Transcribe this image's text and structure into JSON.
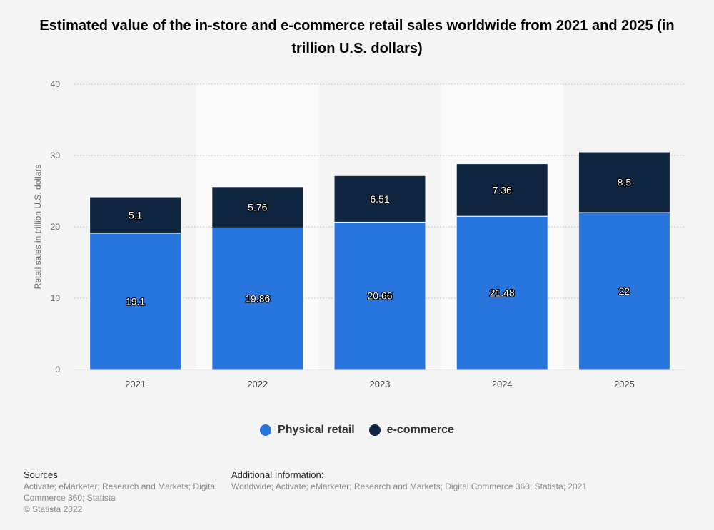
{
  "chart_data": {
    "type": "bar",
    "stacked": true,
    "title": "Estimated value of the in-store and e-commerce retail sales worldwide from 2021 and 2025 (in trillion U.S. dollars)",
    "xlabel": "",
    "ylabel": "Retail sales in trillion U.S. dollars",
    "ylim": [
      0,
      40
    ],
    "yticks": [
      "0",
      "10",
      "20",
      "30",
      "40"
    ],
    "categories": [
      "2021",
      "2022",
      "2023",
      "2024",
      "2025"
    ],
    "series": [
      {
        "name": "Physical retail",
        "color": "#2876dd",
        "values": [
          19.1,
          19.86,
          20.66,
          21.48,
          22
        ]
      },
      {
        "name": "e-commerce",
        "color": "#10253f",
        "values": [
          5.1,
          5.76,
          6.51,
          7.36,
          8.5
        ]
      }
    ],
    "value_labels": [
      [
        "19.1",
        "19.86",
        "20.66",
        "21.48",
        "22"
      ],
      [
        "5.1",
        "5.76",
        "6.51",
        "7.36",
        "8.5"
      ]
    ],
    "grid": true,
    "legend_position": "bottom-center"
  },
  "footer": {
    "sources_heading": "Sources",
    "sources_line1": "Activate; eMarketer; Research and Markets; Digital",
    "sources_line2": "Commerce 360; Statista",
    "copyright": "© Statista 2022",
    "info_heading": "Additional Information:",
    "info_text": "Worldwide; Activate; eMarketer; Research and Markets; Digital Commerce 360; Statista; 2021"
  }
}
